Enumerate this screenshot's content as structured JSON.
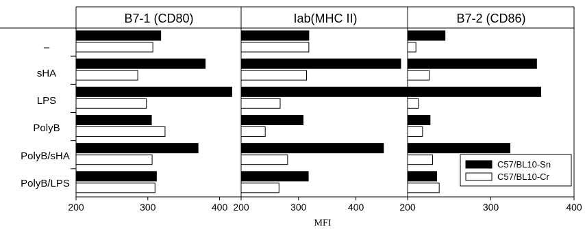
{
  "chart_data": {
    "type": "bar",
    "orientation": "horizontal",
    "categories": [
      "–",
      "sHA",
      "LPS",
      "PolyB",
      "PolyB/sHA",
      "PolyB/LPS"
    ],
    "xlabel": "MFI",
    "legend": {
      "placement": "bottom-right",
      "entries": [
        "C57/BL10-Sn",
        "C57/BL10-Cr"
      ]
    },
    "panels": [
      {
        "title": "B7-1 (CD80)",
        "xlim": [
          200,
          430
        ],
        "ticks": [
          200,
          300,
          400
        ],
        "series": [
          {
            "name": "C57/BL10-Sn",
            "color": "#000000",
            "values": [
              318,
              380,
              417,
              305,
              370,
              312
            ]
          },
          {
            "name": "C57/BL10-Cr",
            "color": "#ffffff",
            "values": [
              307,
              286,
              298,
              324,
              306,
              310
            ]
          }
        ]
      },
      {
        "title": "Iab(MHC II)",
        "xlim": [
          200,
          490
        ],
        "ticks": [
          200,
          300,
          400
        ],
        "series": [
          {
            "name": "C57/BL10-Sn",
            "color": "#000000",
            "values": [
              318,
              478,
              490,
              308,
              448,
              317
            ]
          },
          {
            "name": "C57/BL10-Cr",
            "color": "#ffffff",
            "values": [
              318,
              314,
              268,
              242,
              281,
              266
            ]
          }
        ]
      },
      {
        "title": "B7-2 (CD86)",
        "xlim": [
          200,
          400
        ],
        "ticks": [
          200,
          300,
          400
        ],
        "series": [
          {
            "name": "C57/BL10-Sn",
            "color": "#000000",
            "values": [
              245,
              355,
              360,
              227,
              323,
              235
            ]
          },
          {
            "name": "C57/BL10-Cr",
            "color": "#ffffff",
            "values": [
              210,
              226,
              213,
              218,
              230,
              238
            ]
          }
        ]
      }
    ]
  }
}
